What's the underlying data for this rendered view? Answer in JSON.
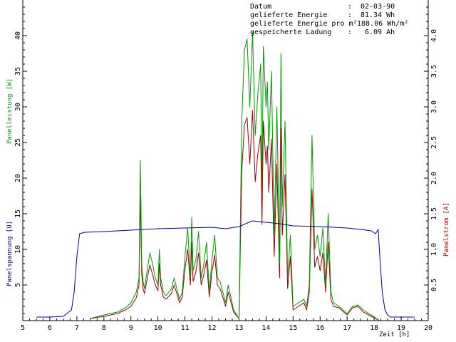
{
  "info": {
    "rows": [
      {
        "label": "Datum",
        "value": "02-03-90"
      },
      {
        "label": "gelieferte Energie",
        "value": "81.34 Wh"
      },
      {
        "label": "gelieferte Energie pro m²",
        "value": "188.06 Wh/m²"
      },
      {
        "label": "gespeicherte Ladung",
        "value": "6.09 Ah"
      }
    ]
  },
  "chart_data": {
    "type": "line",
    "xlabel": "Zeit [h]",
    "ylabel_left_upper": "Panelleistung [W]",
    "ylabel_left_lower": "Panelspannung [U]",
    "ylabel_right": "Panelstrom [A]",
    "xlim": [
      5,
      20
    ],
    "ylim_left": [
      0,
      45
    ],
    "ylim_right": [
      0,
      4.5
    ],
    "x_ticks": [
      "5",
      "6",
      "7",
      "8",
      "9",
      "10",
      "11",
      "12",
      "13",
      "14",
      "15",
      "16",
      "17",
      "18",
      "19",
      "20"
    ],
    "y_ticks_left": [
      "5",
      "10",
      "15",
      "20",
      "25",
      "30",
      "35",
      "40"
    ],
    "y_ticks_right": [
      "0.5",
      "1.0",
      "1.5",
      "2.0",
      "2.5",
      "3.0",
      "3.5",
      "4.0"
    ],
    "colors": {
      "power": "#009900",
      "voltage": "#000099",
      "current": "#990000"
    },
    "series": [
      {
        "name": "Panelleistung [W]",
        "axis": "left",
        "color": "#009900",
        "x": [
          7.5,
          8.0,
          8.5,
          8.8,
          9.0,
          9.2,
          9.3,
          9.35,
          9.4,
          9.45,
          9.5,
          9.6,
          9.7,
          9.8,
          9.9,
          10.0,
          10.05,
          10.1,
          10.2,
          10.3,
          10.5,
          10.6,
          10.7,
          10.8,
          10.9,
          11.0,
          11.1,
          11.2,
          11.25,
          11.3,
          11.4,
          11.5,
          11.6,
          11.7,
          11.8,
          11.9,
          12.0,
          12.1,
          12.2,
          12.3,
          12.4,
          12.5,
          12.6,
          12.8,
          13.0,
          13.1,
          13.2,
          13.3,
          13.4,
          13.5,
          13.6,
          13.7,
          13.8,
          13.85,
          13.9,
          14.0,
          14.05,
          14.1,
          14.2,
          14.3,
          14.4,
          14.5,
          14.55,
          14.6,
          14.7,
          14.8,
          14.9,
          15.0,
          15.2,
          15.4,
          15.5,
          15.6,
          15.7,
          15.8,
          15.9,
          16.0,
          16.1,
          16.2,
          16.3,
          16.4,
          16.5,
          16.7,
          17.0,
          17.2,
          17.4,
          17.6,
          17.8,
          18.0,
          18.2
        ],
        "y": [
          0.3,
          0.8,
          1.2,
          1.8,
          2.5,
          4.0,
          6.0,
          22.5,
          8.0,
          5.5,
          4.5,
          7.0,
          9.5,
          8.0,
          6.0,
          5.0,
          10.0,
          6.0,
          4.0,
          3.5,
          4.5,
          6.0,
          4.5,
          3.0,
          4.0,
          9.0,
          13.0,
          6.0,
          14.5,
          7.0,
          8.5,
          12.5,
          6.0,
          8.0,
          11.0,
          4.0,
          8.5,
          12.0,
          6.0,
          5.5,
          4.0,
          2.5,
          5.0,
          1.5,
          0.3,
          28.0,
          38.0,
          39.5,
          30.0,
          40.5,
          26.0,
          32.0,
          36.0,
          18.0,
          38.5,
          30.0,
          33.5,
          24.0,
          35.0,
          12.0,
          30.0,
          8.0,
          37.5,
          16.0,
          28.0,
          6.0,
          12.0,
          2.0,
          2.5,
          3.0,
          2.0,
          5.0,
          26.0,
          10.0,
          12.0,
          9.0,
          13.0,
          5.0,
          15.0,
          4.0,
          2.5,
          2.0,
          1.0,
          2.0,
          2.2,
          1.5,
          1.0,
          0.5,
          0.0
        ]
      },
      {
        "name": "Panelspannung [U]",
        "axis": "left",
        "color": "#000099",
        "x": [
          5.5,
          6.0,
          6.5,
          6.8,
          6.9,
          7.0,
          7.1,
          7.3,
          8.0,
          9.0,
          10.0,
          11.0,
          12.0,
          12.5,
          13.0,
          13.5,
          14.0,
          14.5,
          15.0,
          16.0,
          17.0,
          17.5,
          17.9,
          18.05,
          18.1,
          18.15,
          18.2,
          18.3,
          18.4,
          18.5,
          18.6,
          19.0,
          19.5
        ],
        "y": [
          0.5,
          0.5,
          0.6,
          1.5,
          4.0,
          9.0,
          12.2,
          12.4,
          12.5,
          12.7,
          12.9,
          13.0,
          13.1,
          12.9,
          13.2,
          14.0,
          13.8,
          13.6,
          13.3,
          13.2,
          13.0,
          12.8,
          12.6,
          12.2,
          12.5,
          12.8,
          9.5,
          4.0,
          1.5,
          0.8,
          0.5,
          0.5,
          0.5
        ]
      },
      {
        "name": "Panelstrom [A]",
        "axis": "right",
        "color": "#990000",
        "x": [
          7.5,
          8.0,
          8.5,
          8.8,
          9.0,
          9.2,
          9.3,
          9.35,
          9.4,
          9.45,
          9.5,
          9.6,
          9.7,
          9.8,
          9.9,
          10.0,
          10.05,
          10.1,
          10.2,
          10.3,
          10.5,
          10.6,
          10.7,
          10.8,
          10.9,
          11.0,
          11.1,
          11.2,
          11.25,
          11.3,
          11.4,
          11.5,
          11.6,
          11.7,
          11.8,
          11.9,
          12.0,
          12.1,
          12.2,
          12.3,
          12.4,
          12.5,
          12.6,
          12.8,
          13.0,
          13.1,
          13.2,
          13.3,
          13.4,
          13.5,
          13.6,
          13.7,
          13.8,
          13.85,
          13.9,
          14.0,
          14.05,
          14.1,
          14.2,
          14.3,
          14.4,
          14.5,
          14.55,
          14.6,
          14.7,
          14.8,
          14.9,
          15.0,
          15.2,
          15.4,
          15.5,
          15.6,
          15.7,
          15.8,
          15.9,
          16.0,
          16.1,
          16.2,
          16.3,
          16.4,
          16.5,
          16.7,
          17.0,
          17.2,
          17.4,
          17.6,
          17.8,
          18.0,
          18.2
        ],
        "y": [
          0.03,
          0.06,
          0.1,
          0.15,
          0.2,
          0.32,
          0.5,
          1.75,
          0.65,
          0.45,
          0.38,
          0.58,
          0.78,
          0.65,
          0.5,
          0.42,
          0.8,
          0.5,
          0.33,
          0.3,
          0.38,
          0.5,
          0.38,
          0.25,
          0.33,
          0.72,
          1.0,
          0.5,
          1.1,
          0.55,
          0.68,
          0.95,
          0.5,
          0.65,
          0.85,
          0.33,
          0.68,
          0.92,
          0.5,
          0.45,
          0.33,
          0.2,
          0.4,
          0.12,
          0.03,
          2.1,
          2.75,
          2.85,
          2.2,
          2.95,
          1.95,
          2.35,
          2.6,
          1.35,
          2.8,
          2.2,
          2.45,
          1.8,
          2.55,
          0.9,
          2.2,
          0.6,
          2.7,
          1.2,
          2.05,
          0.45,
          0.9,
          0.15,
          0.2,
          0.25,
          0.15,
          0.4,
          1.85,
          0.75,
          0.9,
          0.7,
          0.95,
          0.4,
          1.1,
          0.3,
          0.2,
          0.18,
          0.08,
          0.18,
          0.2,
          0.12,
          0.08,
          0.04,
          0.0
        ]
      }
    ]
  }
}
